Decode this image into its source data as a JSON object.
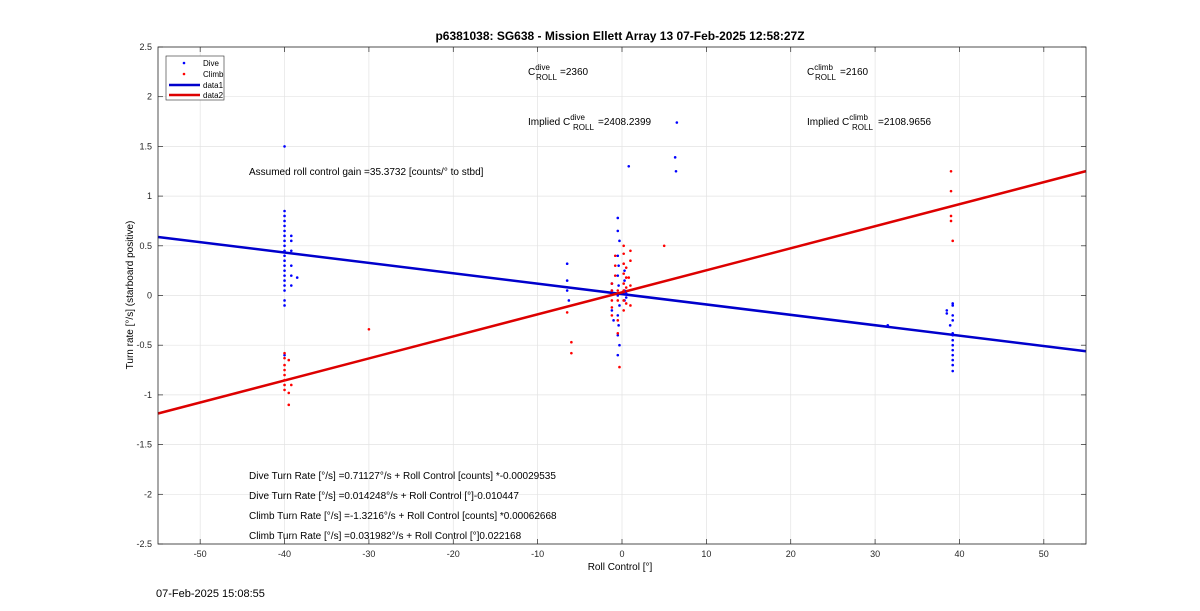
{
  "footer_timestamp": "07-Feb-2025 15:08:55",
  "chart_data": {
    "type": "scatter",
    "title": "p6381038: SG638 - Mission Ellett Array 13 07-Feb-2025 12:58:27Z",
    "xlabel": "Roll Control [°]",
    "ylabel": "Turn rate [°/s] (starboard positive)",
    "xlim": [
      -55,
      55
    ],
    "ylim": [
      -2.5,
      2.5
    ],
    "xticks": [
      -50,
      -40,
      -30,
      -20,
      -10,
      0,
      10,
      20,
      30,
      40,
      50
    ],
    "yticks": [
      -2.5,
      -2,
      -1.5,
      -1,
      -0.5,
      0,
      0.5,
      1,
      1.5,
      2,
      2.5
    ],
    "grid": true,
    "legend_position": "top-left",
    "colors": {
      "dive": "#0000ff",
      "climb": "#ff0000",
      "data1": "#0000cc",
      "data2": "#dd0000"
    },
    "legend": [
      {
        "label": "Dive",
        "marker": "dot",
        "color": "#0000ff"
      },
      {
        "label": "Climb",
        "marker": "dot",
        "color": "#ff0000"
      },
      {
        "label": "data1",
        "marker": "line",
        "color": "#0000cc"
      },
      {
        "label": "data2",
        "marker": "line",
        "color": "#dd0000"
      }
    ],
    "fit_lines": [
      {
        "name": "data1",
        "slope": -0.010447,
        "intercept": 0.014248,
        "color": "#0000cc"
      },
      {
        "name": "data2",
        "slope": 0.022168,
        "intercept": 0.031982,
        "color": "#dd0000"
      }
    ],
    "series": [
      {
        "name": "Dive",
        "color": "#0000ff",
        "points": [
          [
            -40,
            1.5
          ],
          [
            -40,
            0.85
          ],
          [
            -40,
            0.8
          ],
          [
            -40,
            0.75
          ],
          [
            -40,
            0.7
          ],
          [
            -40,
            0.65
          ],
          [
            -40,
            0.6
          ],
          [
            -40,
            0.55
          ],
          [
            -40,
            0.5
          ],
          [
            -40,
            0.45
          ],
          [
            -40,
            0.4
          ],
          [
            -40,
            0.35
          ],
          [
            -40,
            0.3
          ],
          [
            -40,
            0.25
          ],
          [
            -40,
            0.2
          ],
          [
            -40,
            0.15
          ],
          [
            -40,
            0.1
          ],
          [
            -40,
            0.05
          ],
          [
            -40,
            -0.05
          ],
          [
            -40,
            -0.1
          ],
          [
            -39.2,
            0.6
          ],
          [
            -39.2,
            0.55
          ],
          [
            -39.2,
            0.45
          ],
          [
            -39.2,
            0.3
          ],
          [
            -39.2,
            0.2
          ],
          [
            -39.2,
            0.1
          ],
          [
            -38.5,
            0.18
          ],
          [
            -40,
            -0.6
          ],
          [
            -6.5,
            0.32
          ],
          [
            -6.5,
            0.15
          ],
          [
            -6.5,
            0.05
          ],
          [
            -6.3,
            -0.05
          ],
          [
            -0.5,
            0.78
          ],
          [
            -0.5,
            0.65
          ],
          [
            -0.3,
            0.55
          ],
          [
            -0.5,
            0.4
          ],
          [
            -0.4,
            0.3
          ],
          [
            -0.5,
            0.2
          ],
          [
            -0.4,
            0.1
          ],
          [
            -0.5,
            0.0
          ],
          [
            -0.3,
            -0.1
          ],
          [
            -0.5,
            -0.2
          ],
          [
            -0.4,
            -0.3
          ],
          [
            -0.5,
            -0.4
          ],
          [
            -0.3,
            -0.5
          ],
          [
            -0.5,
            -0.6
          ],
          [
            0.3,
            0.25
          ],
          [
            0.3,
            0.15
          ],
          [
            0.3,
            0.05
          ],
          [
            0.3,
            -0.05
          ],
          [
            0.5,
            0.02
          ],
          [
            0.5,
            -0.02
          ],
          [
            0.8,
            1.3
          ],
          [
            -1.2,
            0.12
          ],
          [
            -1.2,
            0.05
          ],
          [
            -1.2,
            -0.15
          ],
          [
            -1.0,
            -0.25
          ],
          [
            6.5,
            1.74
          ],
          [
            6.3,
            1.39
          ],
          [
            6.4,
            1.25
          ],
          [
            31.5,
            -0.3
          ],
          [
            38.5,
            -0.15
          ],
          [
            38.5,
            -0.18
          ],
          [
            39.2,
            -0.08
          ],
          [
            39.2,
            -0.1
          ],
          [
            39.2,
            -0.2
          ],
          [
            39.2,
            -0.25
          ],
          [
            39.2,
            -0.38
          ],
          [
            39.2,
            -0.4
          ],
          [
            39.2,
            -0.45
          ],
          [
            39.2,
            -0.5
          ],
          [
            39.2,
            -0.55
          ],
          [
            39.2,
            -0.6
          ],
          [
            39.2,
            -0.65
          ],
          [
            39.2,
            -0.7
          ],
          [
            39.2,
            -0.76
          ],
          [
            38.9,
            -0.3
          ]
        ]
      },
      {
        "name": "Climb",
        "color": "#ff0000",
        "points": [
          [
            -40,
            -0.58
          ],
          [
            -40,
            -0.63
          ],
          [
            -40,
            -0.7
          ],
          [
            -40,
            -0.75
          ],
          [
            -40,
            -0.8
          ],
          [
            -40,
            -0.85
          ],
          [
            -40,
            -0.9
          ],
          [
            -40,
            -0.95
          ],
          [
            -39.5,
            -0.98
          ],
          [
            -39.5,
            -1.1
          ],
          [
            -39.5,
            -0.65
          ],
          [
            -39.2,
            -0.9
          ],
          [
            -30,
            -0.34
          ],
          [
            -6.5,
            -0.17
          ],
          [
            -6,
            -0.47
          ],
          [
            -6,
            -0.58
          ],
          [
            -1.2,
            0.12
          ],
          [
            -1.2,
            0.05
          ],
          [
            -1.2,
            -0.05
          ],
          [
            -1.2,
            -0.12
          ],
          [
            -1.2,
            -0.2
          ],
          [
            -0.8,
            0.3
          ],
          [
            -0.8,
            0.4
          ],
          [
            -0.8,
            0.2
          ],
          [
            -0.5,
            0.05
          ],
          [
            -0.5,
            -0.05
          ],
          [
            -0.5,
            -0.25
          ],
          [
            -0.5,
            -0.38
          ],
          [
            -0.3,
            -0.72
          ],
          [
            0.2,
            0.5
          ],
          [
            0.2,
            0.42
          ],
          [
            0.2,
            0.32
          ],
          [
            0.2,
            0.22
          ],
          [
            0.2,
            0.12
          ],
          [
            0.2,
            0.05
          ],
          [
            0.2,
            -0.05
          ],
          [
            0.2,
            -0.15
          ],
          [
            0.5,
            0.28
          ],
          [
            0.5,
            0.18
          ],
          [
            0.5,
            0.08
          ],
          [
            0.5,
            -0.08
          ],
          [
            0.8,
            0.18
          ],
          [
            1.0,
            0.45
          ],
          [
            1.0,
            0.35
          ],
          [
            1.0,
            0.1
          ],
          [
            1.0,
            -0.1
          ],
          [
            5,
            0.5
          ],
          [
            39,
            1.25
          ],
          [
            39,
            1.05
          ],
          [
            39,
            0.8
          ],
          [
            39,
            0.75
          ],
          [
            39.2,
            0.55
          ]
        ]
      }
    ],
    "annotations": {
      "c_dive": {
        "base": "C",
        "sup": "dive",
        "sub": "ROLL",
        "value": "=2360"
      },
      "c_climb": {
        "base": "C",
        "sup": "climb",
        "sub": "ROLL",
        "value": "=2160"
      },
      "implied_dive": {
        "prefix": "Implied C",
        "sup": "dive",
        "sub": "ROLL",
        "value": "=2408.2399"
      },
      "implied_climb": {
        "prefix": "Implied C",
        "sup": "climb",
        "sub": "ROLL",
        "value": "=2108.9656"
      },
      "gain": "Assumed roll control gain =35.3732 [counts/° to stbd]",
      "equations": [
        "Dive Turn Rate [°/s] =0.71127°/s + Roll Control [counts] *-0.00029535",
        "Dive Turn Rate [°/s] =0.014248°/s + Roll Control [°]-0.010447",
        "Climb Turn Rate [°/s] =-1.3216°/s + Roll Control [counts] *0.00062668",
        "Climb Turn Rate [°/s] =0.031982°/s + Roll Control [°]0.022168"
      ]
    }
  }
}
